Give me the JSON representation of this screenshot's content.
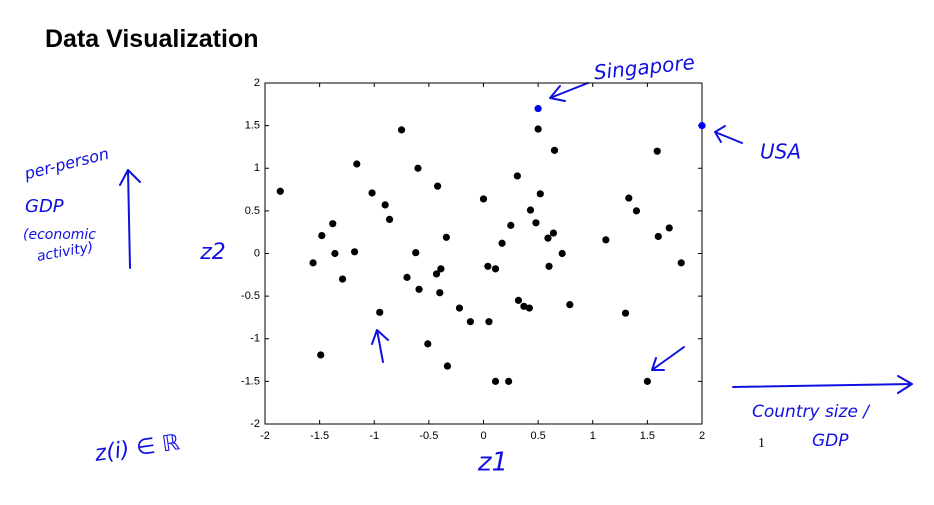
{
  "title": "Data Visualization",
  "page_number": "1",
  "chart_data": {
    "type": "scatter",
    "xlabel": "z1",
    "ylabel": "z2",
    "xlim": [
      -2,
      2
    ],
    "ylim": [
      -2,
      2
    ],
    "xticks": [
      -2,
      -1.5,
      -1,
      -0.5,
      0,
      0.5,
      1,
      1.5,
      2
    ],
    "yticks": [
      -2,
      -1.5,
      -1,
      -0.5,
      0,
      0.5,
      1,
      1.5,
      2
    ],
    "series": [
      {
        "color": "#000000",
        "x": [
          -1.86,
          -1.56,
          -1.48,
          -1.49,
          -1.38,
          -1.36,
          -1.29,
          -1.18,
          -1.16,
          -1.02,
          -0.95,
          -0.9,
          -0.86,
          -0.75,
          -0.7,
          -0.62,
          -0.6,
          -0.59,
          -0.51,
          -0.42,
          -0.43,
          -0.4,
          -0.39,
          -0.34,
          -0.33,
          -0.22,
          -0.12,
          0.0,
          0.04,
          0.05,
          0.11,
          0.11,
          0.17,
          0.23,
          0.25,
          0.31,
          0.32,
          0.37,
          0.42,
          0.43,
          0.48,
          0.5,
          0.52,
          0.59,
          0.6,
          0.64,
          0.65,
          0.72,
          0.79,
          1.12,
          1.3,
          1.33,
          1.4,
          1.5,
          1.59,
          1.6,
          1.7,
          1.81
        ],
        "values": [
          0.73,
          -0.11,
          0.21,
          -1.19,
          0.35,
          0.0,
          -0.3,
          0.02,
          1.05,
          0.71,
          -0.69,
          0.57,
          0.4,
          1.45,
          -0.28,
          0.01,
          1.0,
          -0.42,
          -1.06,
          0.79,
          -0.24,
          -0.46,
          -0.18,
          0.19,
          -1.32,
          -0.64,
          -0.8,
          0.64,
          -0.15,
          -0.8,
          -0.18,
          -1.5,
          0.12,
          -1.5,
          0.33,
          0.91,
          -0.55,
          -0.62,
          -0.64,
          0.51,
          0.36,
          1.46,
          0.7,
          0.18,
          -0.15,
          0.24,
          1.21,
          0.0,
          -0.6,
          0.16,
          -0.7,
          0.65,
          0.5,
          -1.5,
          1.2,
          0.2,
          0.3,
          -0.11
        ]
      },
      {
        "color": "#0000ff",
        "x": [
          0.5,
          2.0
        ],
        "values": [
          1.7,
          1.5
        ]
      }
    ],
    "annotations": [
      "Singapore",
      "USA",
      "per-person",
      "GDP",
      "(economic",
      "activity)",
      "Country size /",
      "GDP",
      "z(i) ∈ ℝ"
    ]
  }
}
